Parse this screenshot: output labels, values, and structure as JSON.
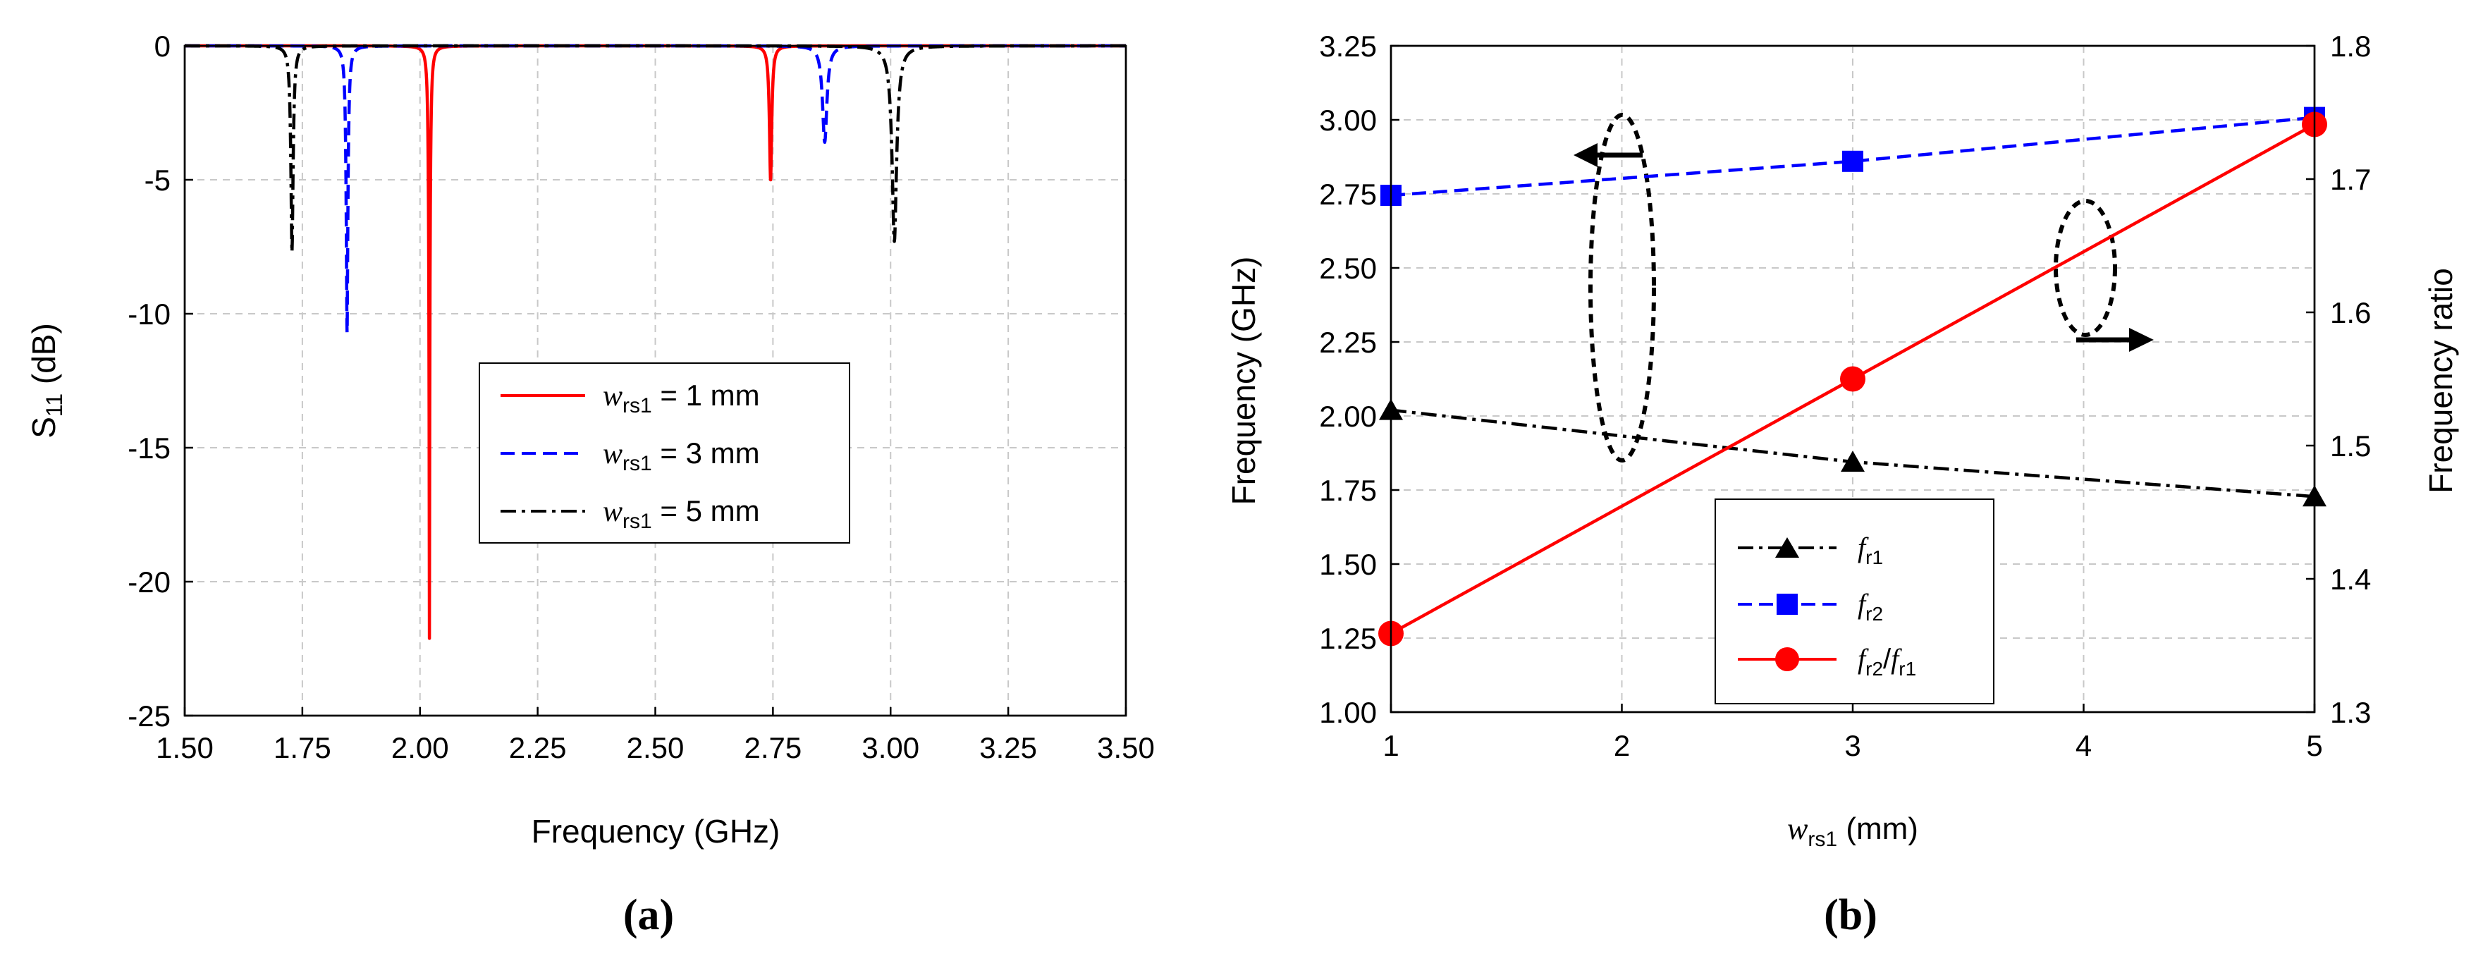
{
  "chart_data": [
    {
      "panel_label": "(a)",
      "type": "line",
      "title": "",
      "xlabel": "Frequency (GHz)",
      "ylabel": {
        "main": "S",
        "sub": "11",
        "unit": " (dB)"
      },
      "xlim": [
        1.5,
        3.5
      ],
      "ylim": [
        -25,
        0
      ],
      "xticks": [
        "1.50",
        "1.75",
        "2.00",
        "2.25",
        "2.50",
        "2.75",
        "3.00",
        "3.25",
        "3.50"
      ],
      "yticks": [
        "0",
        "-5",
        "-10",
        "-15",
        "-20",
        "-25"
      ],
      "grid": true,
      "legend_position": "center-right",
      "series": [
        {
          "name": "w_rs1 = 1 mm",
          "legend": {
            "var": "w",
            "sub": "rs1",
            "rest": " = 1 mm"
          },
          "color": "#ff0000",
          "style": "solid",
          "resonances": [
            {
              "f": 2.02,
              "depth": -22.1,
              "width": 0.0035
            },
            {
              "f": 2.745,
              "depth": -5.0,
              "width": 0.004
            }
          ]
        },
        {
          "name": "w_rs1 = 3 mm",
          "legend": {
            "var": "w",
            "sub": "rs1",
            "rest": " = 3 mm"
          },
          "color": "#0000ff",
          "style": "dashed",
          "resonances": [
            {
              "f": 1.845,
              "depth": -10.7,
              "width": 0.004
            },
            {
              "f": 2.86,
              "depth": -3.6,
              "width": 0.007
            }
          ]
        },
        {
          "name": "w_rs1 = 5 mm",
          "legend": {
            "var": "w",
            "sub": "rs1",
            "rest": " = 5 mm"
          },
          "color": "#000000",
          "style": "dashdot",
          "resonances": [
            {
              "f": 1.728,
              "depth": -7.7,
              "width": 0.0045
            },
            {
              "f": 3.008,
              "depth": -7.3,
              "width": 0.009
            }
          ]
        }
      ]
    },
    {
      "panel_label": "(b)",
      "type": "line",
      "title": "",
      "xlabel": {
        "var": "w",
        "sub": "rs1",
        "unit": " (mm)"
      },
      "ylabel": "Frequency (GHz)",
      "y2label": "Frequency ratio",
      "xlim": [
        1,
        5
      ],
      "ylim": [
        1.0,
        3.25
      ],
      "y2lim": [
        1.3,
        1.8
      ],
      "xticks": [
        "1",
        "2",
        "3",
        "4",
        "5"
      ],
      "yticks": [
        "1.00",
        "1.25",
        "1.50",
        "1.75",
        "2.00",
        "2.25",
        "2.50",
        "2.75",
        "3.00",
        "3.25"
      ],
      "y2ticks": [
        "1.3",
        "1.4",
        "1.5",
        "1.6",
        "1.7",
        "1.8"
      ],
      "grid": true,
      "legend_position": "bottom-center",
      "x": [
        1,
        3,
        5
      ],
      "series": [
        {
          "name": "f_r1",
          "legend": {
            "var": "f",
            "sub": "r1"
          },
          "axis": "left",
          "color": "#000000",
          "style": "dashdot",
          "marker": "triangle",
          "values": [
            2.02,
            1.845,
            1.728
          ]
        },
        {
          "name": "f_r2",
          "legend": {
            "var": "f",
            "sub": "r2"
          },
          "axis": "left",
          "color": "#0000ff",
          "style": "dashed",
          "marker": "square",
          "values": [
            2.745,
            2.86,
            3.008
          ]
        },
        {
          "name": "f_r2/f_r1",
          "legend": {
            "var": "f",
            "sub": "r2",
            "slash": "/",
            "var2": "f",
            "sub2": "r1"
          },
          "axis": "right",
          "color": "#ff0000",
          "style": "solid",
          "marker": "circle",
          "values": [
            1.359,
            1.55,
            1.741
          ]
        }
      ]
    }
  ]
}
